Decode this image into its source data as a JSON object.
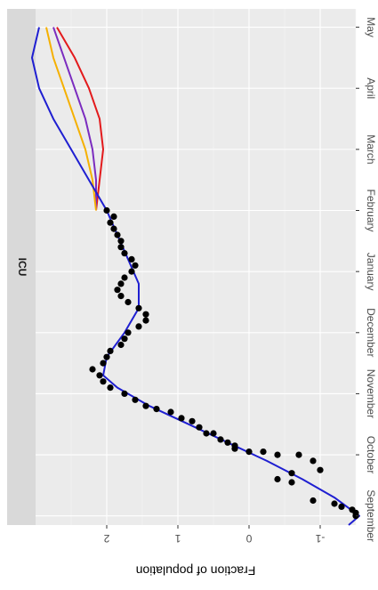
{
  "chart_data": {
    "type": "scatter",
    "panel_title": "ICU",
    "ylabel": "Fraction of population",
    "orientation": "rotated-180",
    "x_categories": [
      "September",
      "October",
      "November",
      "December",
      "January",
      "February",
      "March",
      "April",
      "May"
    ],
    "y_ticks": [
      -1,
      0,
      1,
      2
    ],
    "ylim": [
      -1.5,
      3.0
    ],
    "xlim": [
      -0.15,
      8.3
    ],
    "observed_points": {
      "x": [
        0.0,
        0.05,
        0.1,
        0.15,
        0.2,
        0.25,
        0.55,
        0.6,
        0.7,
        0.75,
        0.9,
        1.0,
        1.0,
        1.05,
        1.05,
        1.1,
        1.15,
        1.2,
        1.25,
        1.35,
        1.35,
        1.45,
        1.55,
        1.6,
        1.7,
        1.75,
        1.8,
        1.9,
        2.0,
        2.1,
        2.2,
        2.3,
        2.4,
        2.5,
        2.6,
        2.7,
        2.8,
        2.9,
        3.0,
        3.1,
        3.2,
        3.3,
        3.4,
        3.5,
        3.6,
        3.7,
        3.8,
        3.9,
        4.0,
        4.1,
        4.2,
        4.3,
        4.4,
        4.5,
        4.6,
        4.7,
        4.8,
        4.9,
        5.0
      ],
      "y": [
        -1.5,
        -1.5,
        -1.45,
        -1.3,
        -1.2,
        -0.9,
        -0.6,
        -0.4,
        -0.6,
        -1.0,
        -0.9,
        -0.7,
        -0.4,
        -0.2,
        0.0,
        0.2,
        0.2,
        0.3,
        0.4,
        0.5,
        0.6,
        0.7,
        0.8,
        0.95,
        1.1,
        1.3,
        1.45,
        1.6,
        1.75,
        1.95,
        2.05,
        2.1,
        2.2,
        2.05,
        2.0,
        1.95,
        1.8,
        1.75,
        1.7,
        1.55,
        1.45,
        1.45,
        1.55,
        1.7,
        1.8,
        1.85,
        1.8,
        1.75,
        1.65,
        1.6,
        1.65,
        1.75,
        1.8,
        1.8,
        1.85,
        1.9,
        1.95,
        1.9,
        2.0
      ]
    },
    "series": [
      {
        "color": "#e31a1c",
        "x": [
          5.0,
          5.5,
          6.0,
          6.5,
          7.0,
          7.5,
          8.0
        ],
        "y": [
          2.15,
          2.1,
          2.05,
          2.1,
          2.25,
          2.45,
          2.7
        ]
      },
      {
        "color": "#7b2cbf",
        "x": [
          5.0,
          5.5,
          6.0,
          6.5,
          7.0,
          7.5,
          8.0
        ],
        "y": [
          2.15,
          2.15,
          2.2,
          2.3,
          2.45,
          2.6,
          2.75
        ]
      },
      {
        "color": "#f5b000",
        "x": [
          5.0,
          5.5,
          6.0,
          6.5,
          7.0,
          7.5,
          8.0
        ],
        "y": [
          2.15,
          2.2,
          2.3,
          2.45,
          2.6,
          2.75,
          2.85
        ]
      },
      {
        "color": "#1f1fd1",
        "x": [
          -0.15,
          0.0,
          0.3,
          0.6,
          0.9,
          1.2,
          1.5,
          1.8,
          2.1,
          2.3,
          2.6,
          3.0,
          3.4,
          3.8,
          4.2,
          4.6,
          5.0,
          5.5,
          6.0,
          6.5,
          7.0,
          7.5,
          8.0
        ],
        "y": [
          -1.4,
          -1.55,
          -1.2,
          -0.75,
          -0.25,
          0.3,
          0.85,
          1.4,
          1.85,
          2.05,
          2.0,
          1.75,
          1.55,
          1.55,
          1.7,
          1.85,
          2.0,
          2.25,
          2.5,
          2.75,
          2.95,
          3.05,
          2.95
        ]
      }
    ]
  }
}
